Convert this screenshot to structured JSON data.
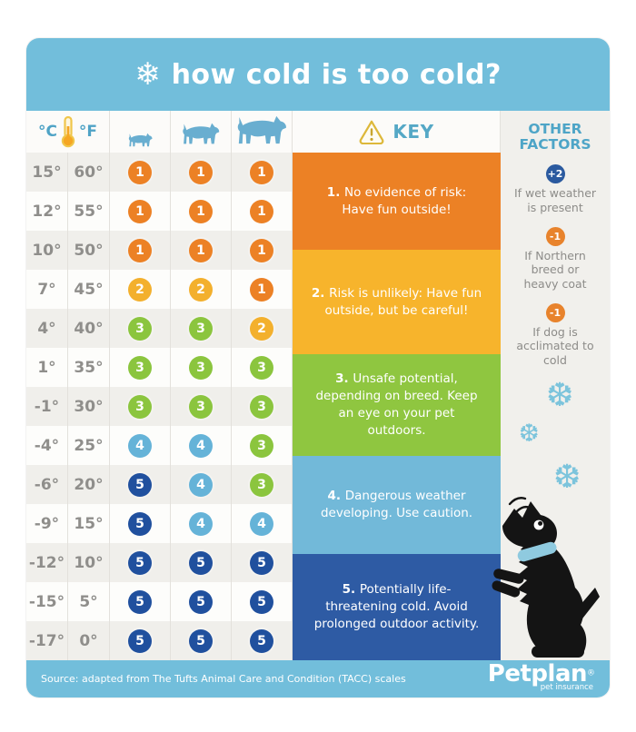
{
  "header": {
    "title": "how cold is too cold?",
    "snowflake_icon": "❄"
  },
  "columns": {
    "celsius_label": "°C",
    "fahrenheit_label": "°F",
    "key_label": "KEY",
    "other_factors_title": "OTHER FACTORS",
    "dog_sizes": [
      "small-dog",
      "medium-dog",
      "large-dog"
    ]
  },
  "table": {
    "rows": [
      {
        "c": "15°",
        "f": "60°",
        "levels": [
          1,
          1,
          1
        ]
      },
      {
        "c": "12°",
        "f": "55°",
        "levels": [
          1,
          1,
          1
        ]
      },
      {
        "c": "10°",
        "f": "50°",
        "levels": [
          1,
          1,
          1
        ]
      },
      {
        "c": "7°",
        "f": "45°",
        "levels": [
          2,
          2,
          1
        ]
      },
      {
        "c": "4°",
        "f": "40°",
        "levels": [
          3,
          3,
          2
        ]
      },
      {
        "c": "1°",
        "f": "35°",
        "levels": [
          3,
          3,
          3
        ]
      },
      {
        "c": "-1°",
        "f": "30°",
        "levels": [
          3,
          3,
          3
        ]
      },
      {
        "c": "-4°",
        "f": "25°",
        "levels": [
          4,
          4,
          3
        ]
      },
      {
        "c": "-6°",
        "f": "20°",
        "levels": [
          5,
          4,
          3
        ]
      },
      {
        "c": "-9°",
        "f": "15°",
        "levels": [
          5,
          4,
          4
        ]
      },
      {
        "c": "-12°",
        "f": "10°",
        "levels": [
          5,
          5,
          5
        ]
      },
      {
        "c": "-15°",
        "f": "5°",
        "levels": [
          5,
          5,
          5
        ]
      },
      {
        "c": "-17°",
        "f": "0°",
        "levels": [
          5,
          5,
          5
        ]
      }
    ]
  },
  "key": {
    "items": [
      {
        "num": "1.",
        "text": "No evidence of risk: Have fun outside!",
        "color": "#ec8125"
      },
      {
        "num": "2.",
        "text": "Risk is unlikely: Have fun outside, but be careful!",
        "color": "#f7b42c"
      },
      {
        "num": "3.",
        "text": "Unsafe potential, depending on breed. Keep an eye on your pet outdoors.",
        "color": "#8fc640"
      },
      {
        "num": "4.",
        "text": "Dangerous weather developing. Use caution.",
        "color": "#72b9d9"
      },
      {
        "num": "5.",
        "text": "Potentially life-threatening cold. Avoid prolonged outdoor activity.",
        "color": "#2e5ba4"
      }
    ]
  },
  "other_factors": {
    "items": [
      {
        "badge": "+2",
        "badge_color": "#2b5a9f",
        "text": "If wet weather is present"
      },
      {
        "badge": "-1",
        "badge_color": "#e8832c",
        "text": "If Northern breed or heavy coat"
      },
      {
        "badge": "-1",
        "badge_color": "#e8832c",
        "text": "If dog is acclimated to cold"
      }
    ],
    "decor_snowflake_icon": "❆"
  },
  "footer": {
    "source": "Source: adapted from The Tufts Animal Care and Condition (TACC) scales",
    "brand": "Petplan",
    "brand_mark": "®",
    "brand_sub": "pet insurance"
  },
  "colors": {
    "header_blue": "#72bedb",
    "levels": {
      "1": "#ec8125",
      "2": "#f3b02d",
      "3": "#8bc53e",
      "4": "#65b3d8",
      "5": "#20509e"
    },
    "dog_icon_blue": "#69aed0",
    "label_blue": "#4fa3c6",
    "temp_text_gray": "#8f8e8b"
  }
}
